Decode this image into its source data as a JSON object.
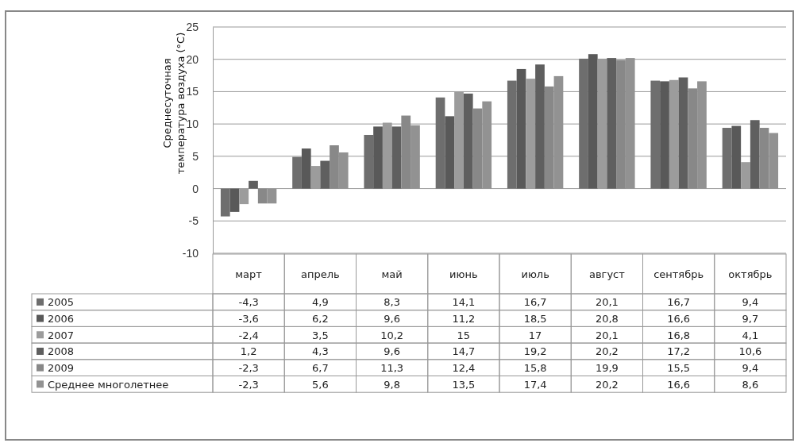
{
  "chart_data": {
    "type": "bar",
    "ylabel": "Среднесуточная температура воздуха (°C)",
    "categories": [
      "март",
      "апрель",
      "май",
      "июнь",
      "июль",
      "август",
      "сентябрь",
      "октябрь"
    ],
    "series": [
      {
        "name": "2005",
        "color": "#6e6e6e",
        "values": [
          -4.3,
          4.9,
          8.3,
          14.1,
          16.7,
          20.1,
          16.7,
          9.4
        ],
        "value_labels": [
          "-4,3",
          "4,9",
          "8,3",
          "14,1",
          "16,7",
          "20,1",
          "16,7",
          "9,4"
        ]
      },
      {
        "name": "2006",
        "color": "#595959",
        "values": [
          -3.6,
          6.2,
          9.6,
          11.2,
          18.5,
          20.8,
          16.6,
          9.7
        ],
        "value_labels": [
          "-3,6",
          "6,2",
          "9,6",
          "11,2",
          "18,5",
          "20,8",
          "16,6",
          "9,7"
        ]
      },
      {
        "name": "2007",
        "color": "#9c9c9c",
        "values": [
          -2.4,
          3.5,
          10.2,
          15,
          17,
          20.1,
          16.8,
          4.1
        ],
        "value_labels": [
          "-2,4",
          "3,5",
          "10,2",
          "15",
          "17",
          "20,1",
          "16,8",
          "4,1"
        ]
      },
      {
        "name": "2008",
        "color": "#5f5f5f",
        "values": [
          1.2,
          4.3,
          9.6,
          14.7,
          19.2,
          20.2,
          17.2,
          10.6
        ],
        "value_labels": [
          "1,2",
          "4,3",
          "9,6",
          "14,7",
          "19,2",
          "20,2",
          "17,2",
          "10,6"
        ]
      },
      {
        "name": "2009",
        "color": "#888888",
        "values": [
          -2.3,
          6.7,
          11.3,
          12.4,
          15.8,
          19.9,
          15.5,
          9.4
        ],
        "value_labels": [
          "-2,3",
          "6,7",
          "11,3",
          "12,4",
          "15,8",
          "19,9",
          "15,5",
          "9,4"
        ]
      },
      {
        "name": "Среднее многолетнее",
        "color": "#929292",
        "values": [
          -2.3,
          5.6,
          9.8,
          13.5,
          17.4,
          20.2,
          16.6,
          8.6
        ],
        "value_labels": [
          "-2,3",
          "5,6",
          "9,8",
          "13,5",
          "17,4",
          "20,2",
          "16,6",
          "8,6"
        ]
      }
    ],
    "ylim": [
      -10,
      25
    ],
    "yticks": [
      -10,
      -5,
      0,
      5,
      10,
      15,
      20,
      25
    ],
    "grid": "y",
    "legend": "bottom left"
  }
}
